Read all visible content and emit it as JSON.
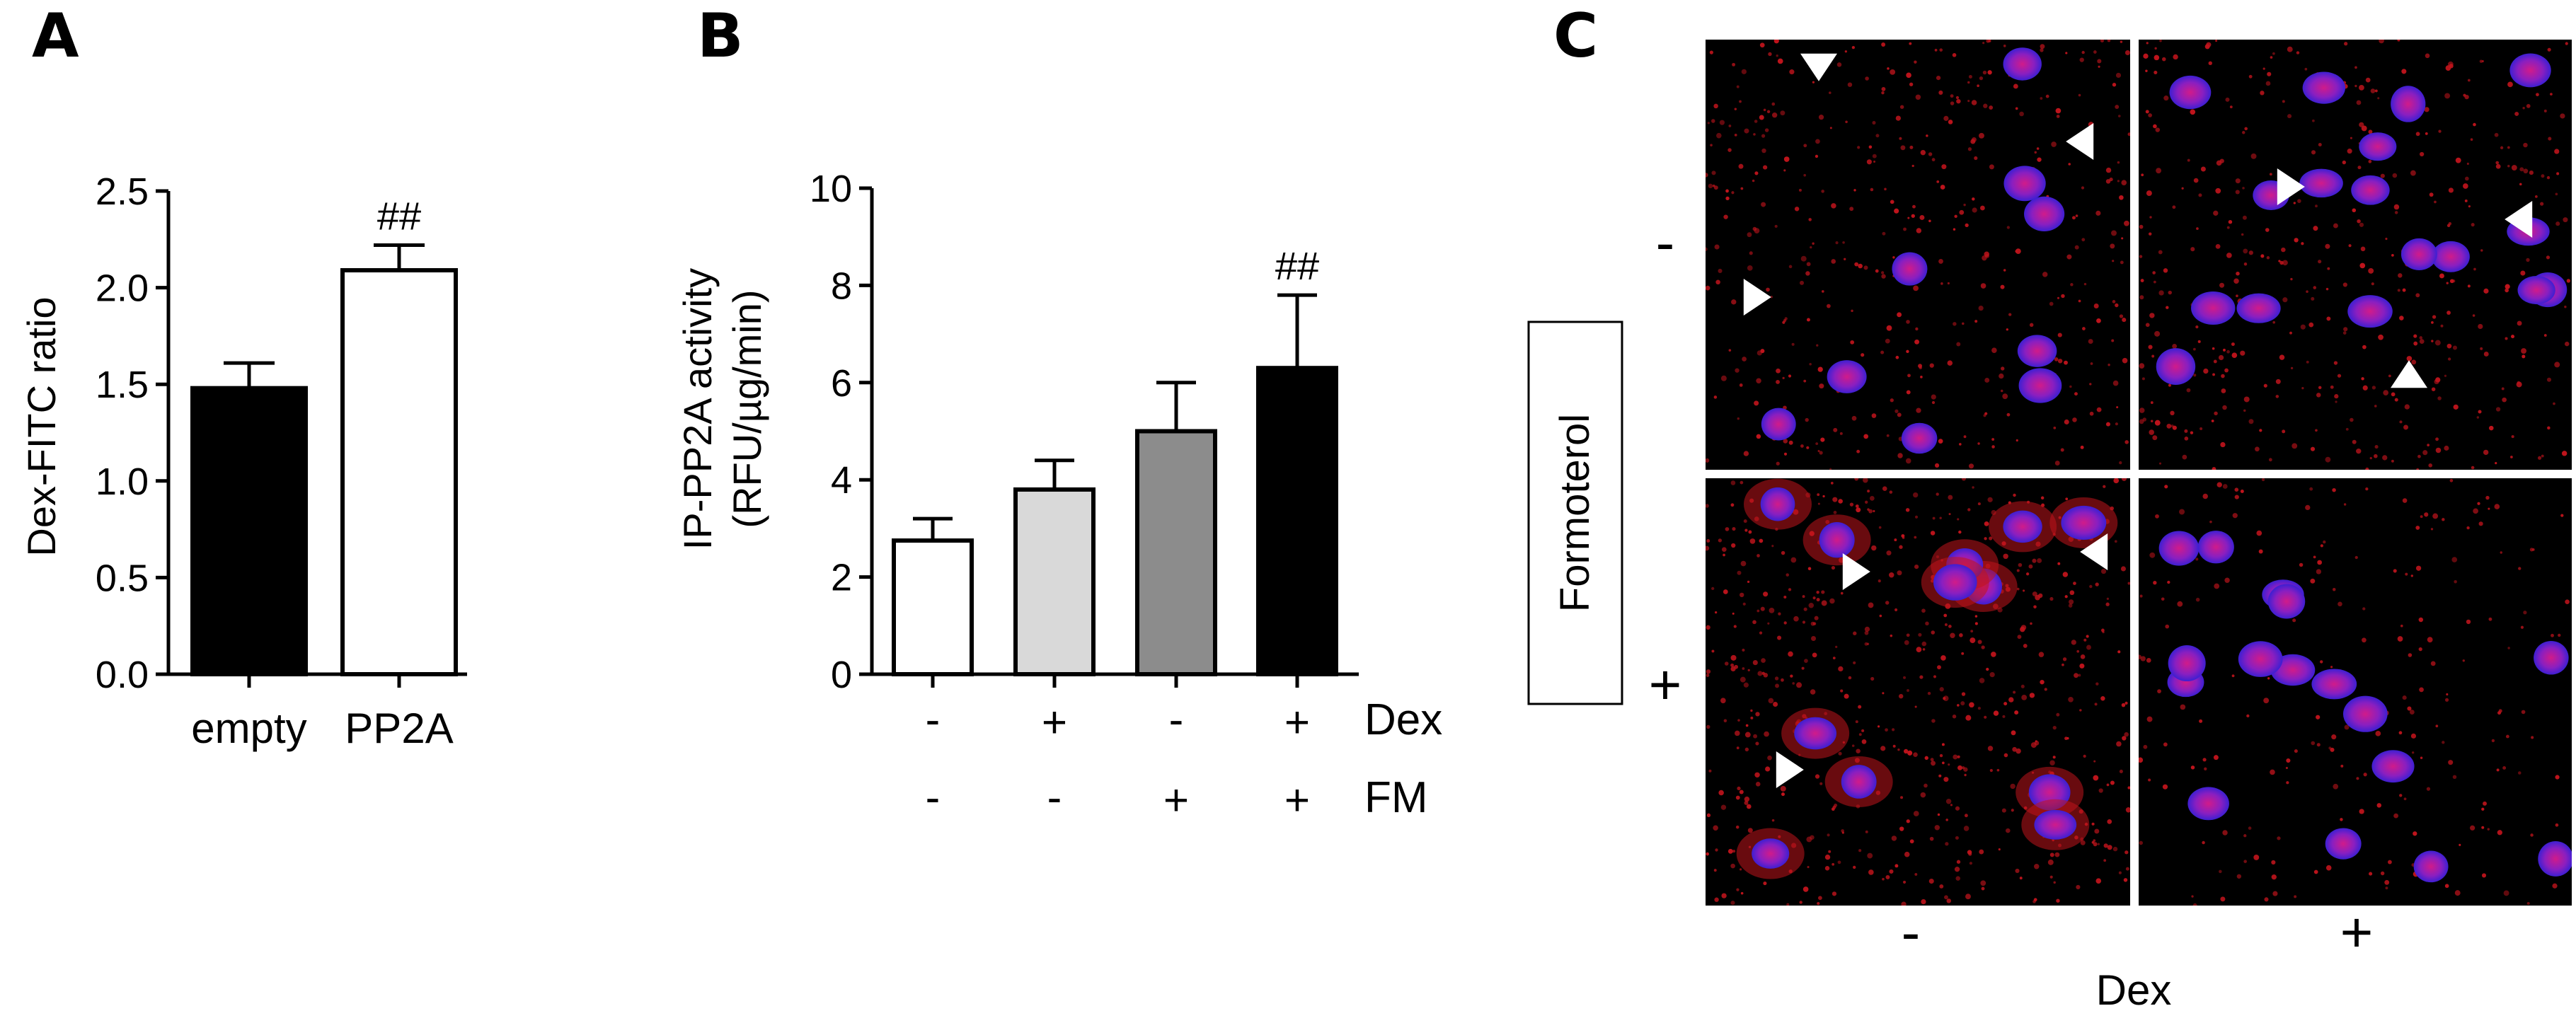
{
  "panels": {
    "A": {
      "letter": "A",
      "chart_data": {
        "type": "bar",
        "ylabel": "Dex-FITC ratio",
        "ylim": [
          0,
          2.5
        ],
        "yticks": [
          "0.0",
          "0.5",
          "1.0",
          "1.5",
          "2.0",
          "2.5"
        ],
        "categories": [
          "empty",
          "PP2A"
        ],
        "values": [
          1.48,
          2.09
        ],
        "errors": [
          0.13,
          0.13
        ],
        "fills": [
          "#000000",
          "#ffffff"
        ],
        "significance": [
          "",
          "##"
        ]
      }
    },
    "B": {
      "letter": "B",
      "chart_data": {
        "type": "bar",
        "ylabel_line1": "IP-PP2A activity",
        "ylabel_line2": "(RFU/µg/min)",
        "ylim": [
          0,
          10
        ],
        "yticks": [
          "0",
          "2",
          "4",
          "6",
          "8",
          "10"
        ],
        "values": [
          2.75,
          3.8,
          5.0,
          6.3
        ],
        "errors": [
          0.45,
          0.6,
          1.0,
          1.5
        ],
        "fills": [
          "#ffffff",
          "#d9d9d9",
          "#8c8c8c",
          "#000000"
        ],
        "significance": [
          "",
          "",
          "",
          "##"
        ],
        "conditions": [
          {
            "name": "Dex",
            "values": [
              "-",
              "+",
              "-",
              "+"
            ]
          },
          {
            "name": "FM",
            "values": [
              "-",
              "-",
              "+",
              "+"
            ]
          }
        ]
      }
    },
    "C": {
      "letter": "C",
      "row_factor": "Formoterol",
      "row_levels": [
        "-",
        "+"
      ],
      "col_factor": "Dex",
      "col_levels": [
        "-",
        "+"
      ]
    }
  },
  "colors": {
    "micrograph_background": "#000000",
    "nucleus": "#2a1fd6",
    "nucleus_stain": "#d01b8a",
    "cytoplasm_stain": "#c0141c",
    "arrowhead": "#ffffff"
  }
}
